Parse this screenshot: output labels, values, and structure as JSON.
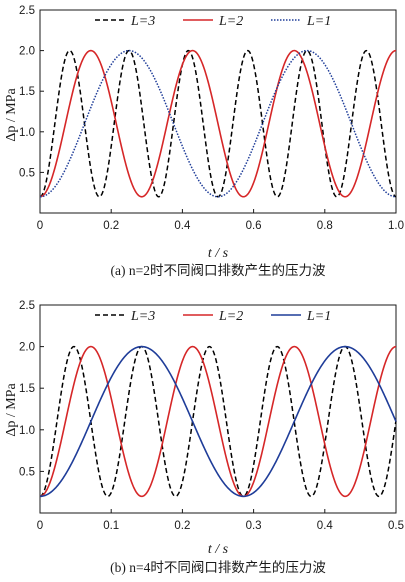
{
  "chart_data": [
    {
      "type": "line",
      "caption": "(a) n=2时不同阀口排数产生的压力波",
      "xlabel": "t / s",
      "ylabel": "Δp / MPa",
      "xlim": [
        0,
        1.0
      ],
      "ylim": [
        0,
        2.5
      ],
      "xticks": [
        "0",
        "0.2",
        "0.4",
        "0.6",
        "0.8",
        "1.0"
      ],
      "yticks": [
        "0.5",
        "1.0",
        "1.5",
        "2.0",
        "2.5"
      ],
      "legend_position": "top",
      "series": [
        {
          "name": "L=3",
          "style": "dashed",
          "color": "#000000",
          "period": 0.1667,
          "min": 0.2,
          "max": 2.0
        },
        {
          "name": "L=2",
          "style": "solid",
          "color": "#d62728",
          "period": 0.2857,
          "min": 0.2,
          "max": 2.0
        },
        {
          "name": "L=1",
          "style": "dotted",
          "color": "#1f3d99",
          "period": 0.5,
          "min": 0.2,
          "max": 2.0
        }
      ]
    },
    {
      "type": "line",
      "caption": "(b) n=4时不同阀口排数产生的压力波",
      "xlabel": "t / s",
      "ylabel": "Δp / MPa",
      "xlim": [
        0,
        0.5
      ],
      "ylim": [
        0,
        2.5
      ],
      "xticks": [
        "0",
        "0.1",
        "0.2",
        "0.3",
        "0.4",
        "0.5"
      ],
      "yticks": [
        "0.5",
        "1.0",
        "1.5",
        "2.0",
        "2.5"
      ],
      "legend_position": "top",
      "series": [
        {
          "name": "L=3",
          "style": "dashed",
          "color": "#000000",
          "period": 0.0952,
          "min": 0.2,
          "max": 2.0
        },
        {
          "name": "L=2",
          "style": "solid",
          "color": "#d62728",
          "period": 0.1429,
          "min": 0.2,
          "max": 2.0
        },
        {
          "name": "L=1",
          "style": "solid",
          "color": "#1f3d99",
          "period": 0.2857,
          "min": 0.2,
          "max": 2.0
        }
      ]
    }
  ]
}
